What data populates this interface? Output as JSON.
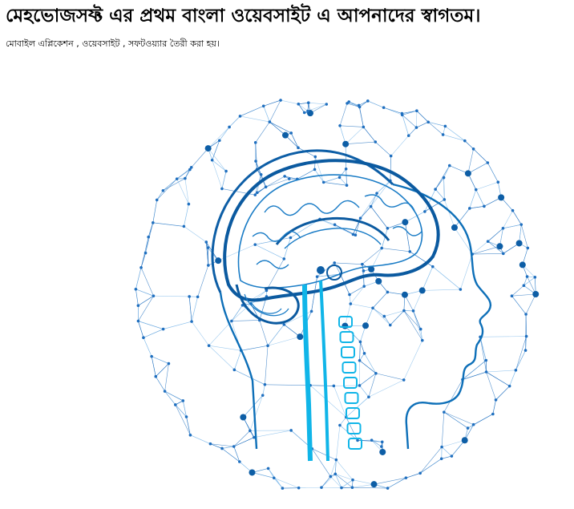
{
  "page": {
    "title": "মেহভোজসফ্ট এর প্রথম বাংলা ওয়েবসাইট এ আপনাদের স্বাগতম।",
    "subtitle": "মোবাইল এপ্লিকেশন , ওয়েবসাইট , সফটওয়্যার তৈরী করা হয়।"
  },
  "hero_image": {
    "subject": "ai-brain-network-sphere",
    "colors": {
      "network_blue": "#1f6fbf",
      "light_blue": "#7fb9ea",
      "brain_blue": "#0d5ea6",
      "spine_cyan": "#10b5e8"
    }
  }
}
